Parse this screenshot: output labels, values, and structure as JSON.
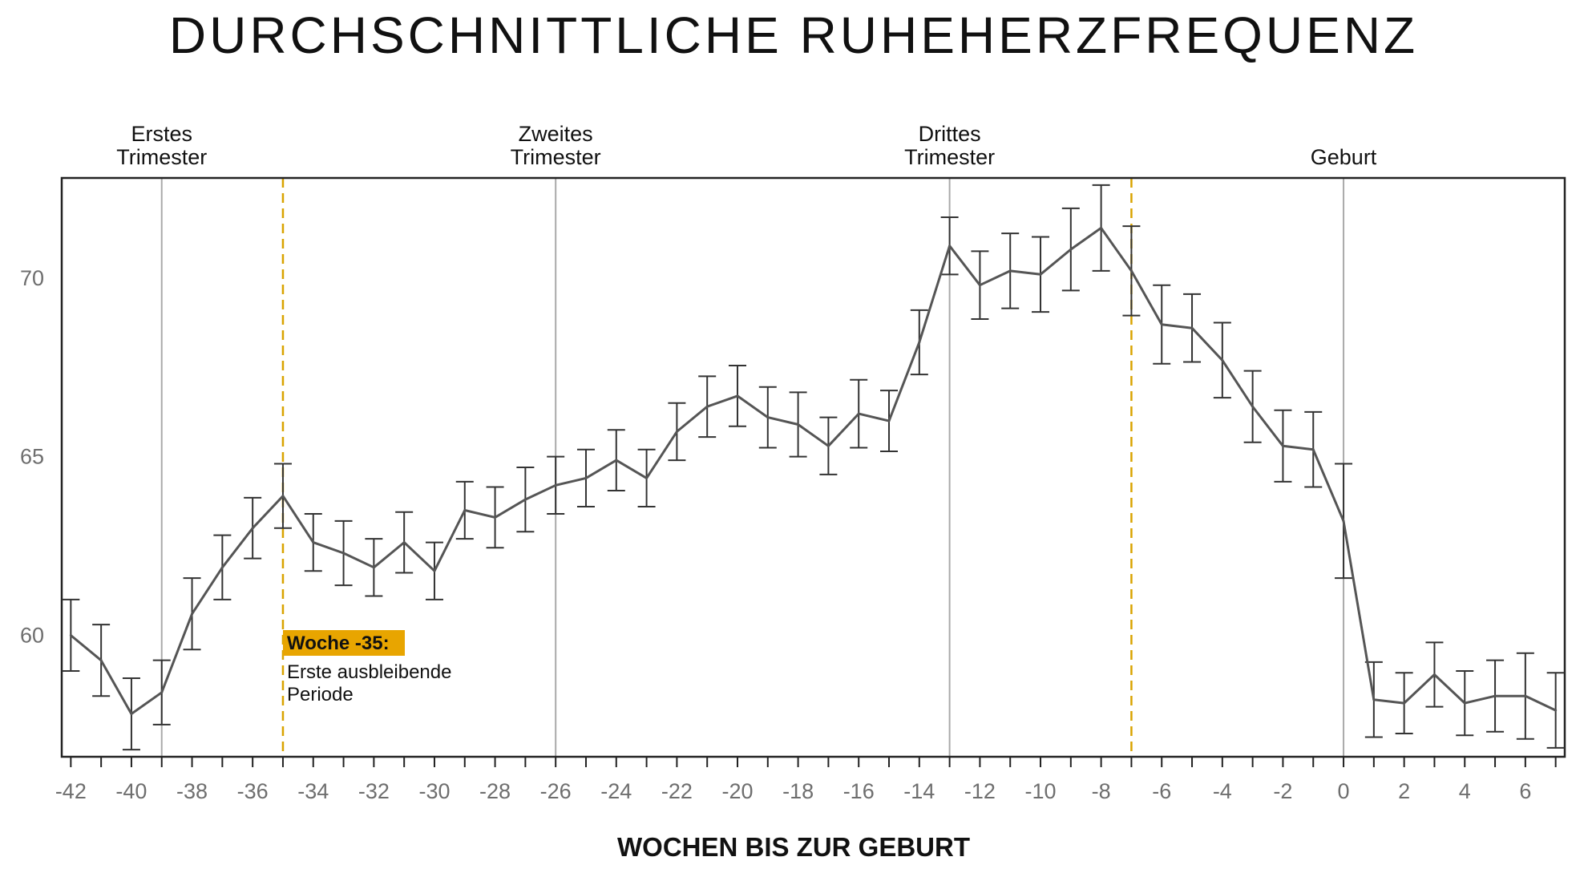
{
  "chart_data": {
    "type": "line",
    "title": "DURCHSCHNITTLICHE RUHEHERZFREQUENZ",
    "xlabel": "WOCHEN BIS ZUR GEBURT",
    "ylabel": "",
    "xlim": [
      -42.3,
      7.3
    ],
    "ylim": [
      56.6,
      72.8
    ],
    "xticks": [
      -42,
      -40,
      -38,
      -36,
      -34,
      -32,
      -30,
      -28,
      -26,
      -24,
      -22,
      -20,
      -18,
      -16,
      -14,
      -12,
      -10,
      -8,
      -6,
      -4,
      -2,
      0,
      2,
      4,
      6
    ],
    "yticks": [
      60,
      65,
      70
    ],
    "colors": {
      "line": "#555555",
      "period_line": "#aaaaaa",
      "marker_line": "#d9a300",
      "annotation_bg": "#e8a500"
    },
    "period_lines": [
      {
        "x": -39,
        "label_line1": "Erstes",
        "label_line2": "Trimester"
      },
      {
        "x": -26,
        "label_line1": "Zweites",
        "label_line2": "Trimester"
      },
      {
        "x": -13,
        "label_line1": "Drittes",
        "label_line2": "Trimester"
      },
      {
        "x": 0,
        "label_line1": "",
        "label_line2": "Geburt"
      }
    ],
    "marker_lines": [
      -35,
      -7
    ],
    "annotation": {
      "x": -35,
      "heading": "Woche -35:",
      "line1": "Erste ausbleibende",
      "line2": "Periode"
    },
    "series": [
      {
        "name": "Ruheherzfrequenz",
        "x": [
          -42,
          -41,
          -40,
          -39,
          -38,
          -37,
          -36,
          -35,
          -34,
          -33,
          -32,
          -31,
          -30,
          -29,
          -28,
          -27,
          -26,
          -25,
          -24,
          -23,
          -22,
          -21,
          -20,
          -19,
          -18,
          -17,
          -16,
          -15,
          -14,
          -13,
          -12,
          -11,
          -10,
          -9,
          -8,
          -7,
          -6,
          -5,
          -4,
          -3,
          -2,
          -1,
          0,
          1,
          2,
          3,
          4,
          5,
          6,
          7
        ],
        "y": [
          60.0,
          59.3,
          57.8,
          58.4,
          60.6,
          61.9,
          63.0,
          63.9,
          62.6,
          62.3,
          61.9,
          62.6,
          61.8,
          63.5,
          63.3,
          63.8,
          64.2,
          64.4,
          64.9,
          64.4,
          65.7,
          66.4,
          66.7,
          66.1,
          65.9,
          65.3,
          66.2,
          66.0,
          68.2,
          70.9,
          69.8,
          70.2,
          70.1,
          70.8,
          71.4,
          70.2,
          68.7,
          68.6,
          67.7,
          66.4,
          65.3,
          65.2,
          63.2,
          58.2,
          58.1,
          58.9,
          58.1,
          58.3,
          58.3,
          57.9
        ],
        "err": [
          1.0,
          1.0,
          1.0,
          0.9,
          1.0,
          0.9,
          0.85,
          0.9,
          0.8,
          0.9,
          0.8,
          0.85,
          0.8,
          0.8,
          0.85,
          0.9,
          0.8,
          0.8,
          0.85,
          0.8,
          0.8,
          0.85,
          0.85,
          0.85,
          0.9,
          0.8,
          0.95,
          0.85,
          0.9,
          0.8,
          0.95,
          1.05,
          1.05,
          1.15,
          1.2,
          1.25,
          1.1,
          0.95,
          1.05,
          1.0,
          1.0,
          1.05,
          1.6,
          1.05,
          0.85,
          0.9,
          0.9,
          1.0,
          1.2,
          1.05
        ]
      }
    ]
  }
}
